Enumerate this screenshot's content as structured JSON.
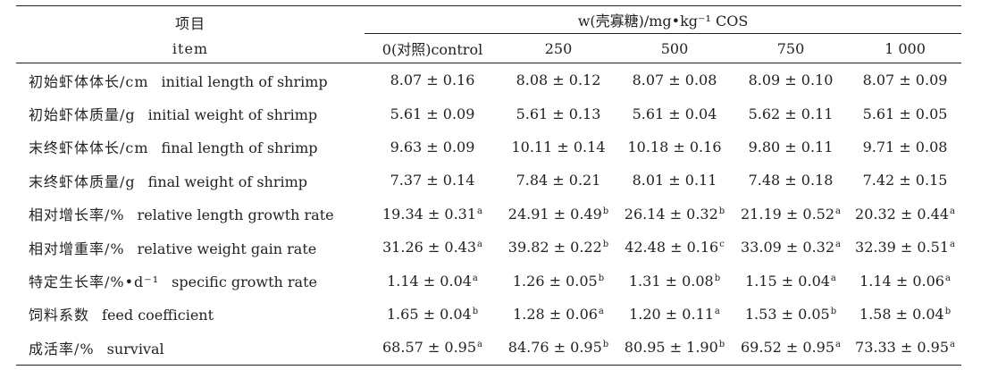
{
  "header": {
    "item_zh": "项目",
    "item_en": "item",
    "group": "w(壳寡糖)/mg•kg⁻¹ COS",
    "columns": [
      "0(对照)control",
      "250",
      "500",
      "750",
      "1 000"
    ]
  },
  "rows": [
    {
      "zh": "初始虾体体长/cm",
      "en": "initial length of shrimp",
      "values": [
        {
          "v": "8.07 ± 0.16",
          "sup": ""
        },
        {
          "v": "8.08 ± 0.12",
          "sup": ""
        },
        {
          "v": "8.07 ± 0.08",
          "sup": ""
        },
        {
          "v": "8.09 ± 0.10",
          "sup": ""
        },
        {
          "v": "8.07 ± 0.09",
          "sup": ""
        }
      ]
    },
    {
      "zh": "初始虾体质量/g",
      "en": "initial weight of shrimp",
      "values": [
        {
          "v": "5.61 ± 0.09",
          "sup": ""
        },
        {
          "v": "5.61 ± 0.13",
          "sup": ""
        },
        {
          "v": "5.61 ± 0.04",
          "sup": ""
        },
        {
          "v": "5.62 ± 0.11",
          "sup": ""
        },
        {
          "v": "5.61 ± 0.05",
          "sup": ""
        }
      ]
    },
    {
      "zh": "末终虾体体长/cm",
      "en": "final length of shrimp",
      "values": [
        {
          "v": "9.63 ± 0.09",
          "sup": ""
        },
        {
          "v": "10.11 ± 0.14",
          "sup": ""
        },
        {
          "v": "10.18 ± 0.16",
          "sup": ""
        },
        {
          "v": "9.80 ± 0.11",
          "sup": ""
        },
        {
          "v": "9.71 ± 0.08",
          "sup": ""
        }
      ]
    },
    {
      "zh": "末终虾体质量/g",
      "en": "final weight of shrimp",
      "values": [
        {
          "v": "7.37 ± 0.14",
          "sup": ""
        },
        {
          "v": "7.84 ± 0.21",
          "sup": ""
        },
        {
          "v": "8.01 ± 0.11",
          "sup": ""
        },
        {
          "v": "7.48 ± 0.18",
          "sup": ""
        },
        {
          "v": "7.42 ± 0.15",
          "sup": ""
        }
      ]
    },
    {
      "zh": "相对增长率/%",
      "en": "relative length growth rate",
      "values": [
        {
          "v": "19.34 ± 0.31",
          "sup": "a"
        },
        {
          "v": "24.91 ± 0.49",
          "sup": "b"
        },
        {
          "v": "26.14 ± 0.32",
          "sup": "b"
        },
        {
          "v": "21.19 ± 0.52",
          "sup": "a"
        },
        {
          "v": "20.32 ± 0.44",
          "sup": "a"
        }
      ]
    },
    {
      "zh": "相对增重率/%",
      "en": "relative weight gain rate",
      "values": [
        {
          "v": "31.26 ± 0.43",
          "sup": "a"
        },
        {
          "v": "39.82 ± 0.22",
          "sup": "b"
        },
        {
          "v": "42.48 ± 0.16",
          "sup": "c"
        },
        {
          "v": "33.09 ± 0.32",
          "sup": "a"
        },
        {
          "v": "32.39 ± 0.51",
          "sup": "a"
        }
      ]
    },
    {
      "zh": "特定生长率/%•d⁻¹",
      "en": "specific growth rate",
      "values": [
        {
          "v": "1.14 ± 0.04",
          "sup": "a"
        },
        {
          "v": "1.26 ± 0.05",
          "sup": "b"
        },
        {
          "v": "1.31 ± 0.08",
          "sup": "b"
        },
        {
          "v": "1.15 ± 0.04",
          "sup": "a"
        },
        {
          "v": "1.14 ± 0.06",
          "sup": "a"
        }
      ]
    },
    {
      "zh": "饲料系数",
      "en": "feed coefficient",
      "values": [
        {
          "v": "1.65 ± 0.04",
          "sup": "b"
        },
        {
          "v": "1.28 ± 0.06",
          "sup": "a"
        },
        {
          "v": "1.20 ± 0.11",
          "sup": "a"
        },
        {
          "v": "1.53 ± 0.05",
          "sup": "b"
        },
        {
          "v": "1.58 ± 0.04",
          "sup": "b"
        }
      ]
    },
    {
      "zh": "成活率/%",
      "en": "survival",
      "values": [
        {
          "v": "68.57 ± 0.95",
          "sup": "a"
        },
        {
          "v": "84.76 ± 0.95",
          "sup": "b"
        },
        {
          "v": "80.95 ± 1.90",
          "sup": "b"
        },
        {
          "v": "69.52 ± 0.95",
          "sup": "a"
        },
        {
          "v": "73.33 ± 0.95",
          "sup": "a"
        }
      ]
    }
  ]
}
